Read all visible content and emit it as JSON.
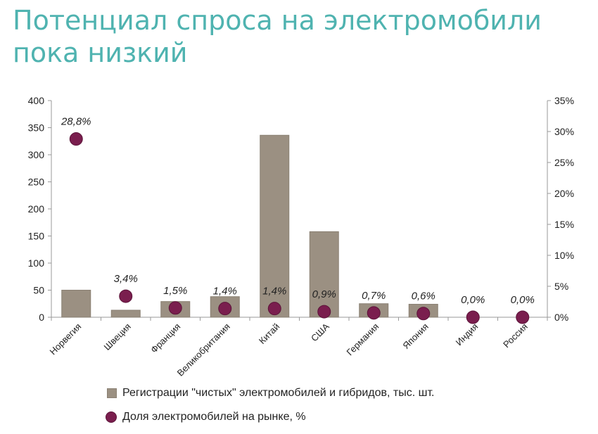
{
  "title": "Потенциал спроса на электромобили пока низкий",
  "chart_data": {
    "type": "bar",
    "categories": [
      "Норвегия",
      "Швеция",
      "Франция",
      "Великобритания",
      "Китай",
      "США",
      "Германия",
      "Япония",
      "Индия",
      "Россия"
    ],
    "series": [
      {
        "name": "Регистрации \"чистых\" электромобилей и гибридов, тыс. шт.",
        "type": "bar",
        "axis": "left",
        "values": [
          50,
          13,
          29,
          38,
          336,
          158,
          25,
          24,
          0,
          0
        ],
        "color": "#9b9082"
      },
      {
        "name": "Доля электромобилей на рынке, %",
        "type": "scatter",
        "axis": "right",
        "values": [
          28.8,
          3.4,
          1.5,
          1.4,
          1.4,
          0.9,
          0.7,
          0.6,
          0.0,
          0.0
        ],
        "labels": [
          "28,8%",
          "3,4%",
          "1,5%",
          "1,4%",
          "1,4%",
          "0,9%",
          "0,7%",
          "0,6%",
          "0,0%",
          "0,0%"
        ],
        "color": "#7a1e4e"
      }
    ],
    "ylim_left": [
      0,
      400
    ],
    "yticks_left": [
      "0",
      "50",
      "100",
      "150",
      "200",
      "250",
      "300",
      "350",
      "400"
    ],
    "ylim_right": [
      0,
      35
    ],
    "yticks_right": [
      "0%",
      "5%",
      "10%",
      "15%",
      "20%",
      "25%",
      "30%",
      "35%"
    ],
    "grid": false,
    "legend_position": "bottom"
  },
  "legend": {
    "bar_label": "Регистрации \"чистых\" электромобилей и гибридов, тыс. шт.",
    "dot_label": "Доля электромобилей на рынке, %"
  }
}
